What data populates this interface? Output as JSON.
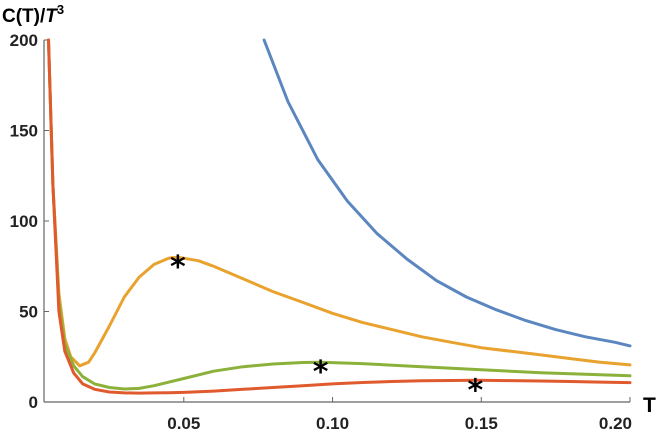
{
  "chart_data": {
    "type": "line",
    "ylabel_main": "C(T)/",
    "ylabel_italic": "T",
    "ylabel_sup": "3",
    "xlabel": "T",
    "xlim": [
      0.003,
      0.2
    ],
    "ylim": [
      0,
      200
    ],
    "x_ticks": [
      0.05,
      0.1,
      0.15,
      0.2
    ],
    "x_tick_labels": [
      "0.05",
      "0.10",
      "0.15",
      "0.20"
    ],
    "y_ticks": [
      0,
      50,
      100,
      150,
      200
    ],
    "y_tick_labels": [
      "0",
      "50",
      "100",
      "150",
      "200"
    ],
    "series": [
      {
        "color": "#5B86BF",
        "x": [
          0.077,
          0.085,
          0.095,
          0.105,
          0.115,
          0.125,
          0.135,
          0.145,
          0.155,
          0.165,
          0.175,
          0.185,
          0.195,
          0.2
        ],
        "y": [
          200,
          166,
          134,
          111,
          93,
          79,
          67,
          58,
          51,
          45,
          40,
          36,
          33,
          31
        ]
      },
      {
        "color": "#E8A22D",
        "x": [
          0.0045,
          0.006,
          0.008,
          0.01,
          0.012,
          0.015,
          0.018,
          0.02,
          0.025,
          0.03,
          0.035,
          0.04,
          0.045,
          0.048,
          0.055,
          0.06,
          0.07,
          0.08,
          0.09,
          0.1,
          0.11,
          0.12,
          0.13,
          0.14,
          0.15,
          0.16,
          0.17,
          0.18,
          0.19,
          0.2
        ],
        "y": [
          200,
          120,
          60,
          35,
          25,
          20,
          22,
          27,
          42,
          58,
          69,
          76,
          79.5,
          80,
          78,
          75,
          68,
          61,
          55,
          49,
          44,
          40,
          36,
          33,
          30,
          28,
          26,
          24,
          22,
          20.5
        ]
      },
      {
        "color": "#8BB13A",
        "x": [
          0.0045,
          0.006,
          0.008,
          0.01,
          0.013,
          0.016,
          0.02,
          0.025,
          0.03,
          0.035,
          0.04,
          0.05,
          0.06,
          0.07,
          0.08,
          0.09,
          0.096,
          0.11,
          0.13,
          0.15,
          0.17,
          0.2
        ],
        "y": [
          200,
          120,
          55,
          32,
          20,
          14,
          10,
          8,
          7.2,
          7.5,
          9,
          13,
          17,
          19.5,
          21,
          21.8,
          22,
          21.2,
          19.5,
          17.8,
          16.2,
          14.5
        ]
      },
      {
        "color": "#E05A2E",
        "x": [
          0.0045,
          0.006,
          0.008,
          0.01,
          0.013,
          0.016,
          0.02,
          0.025,
          0.03,
          0.035,
          0.04,
          0.045,
          0.05,
          0.06,
          0.07,
          0.08,
          0.09,
          0.1,
          0.11,
          0.12,
          0.13,
          0.14,
          0.148,
          0.16,
          0.17,
          0.18,
          0.19,
          0.2
        ],
        "y": [
          200,
          120,
          50,
          28,
          16,
          10,
          7,
          5.5,
          5,
          4.9,
          5,
          5.1,
          5.3,
          6,
          7,
          8,
          9,
          10,
          10.8,
          11.3,
          11.7,
          11.9,
          12,
          11.8,
          11.6,
          11.3,
          11,
          10.7
        ]
      }
    ],
    "markers": [
      {
        "symbol": "*",
        "x": 0.048,
        "y": 80
      },
      {
        "symbol": "*",
        "x": 0.096,
        "y": 22
      },
      {
        "symbol": "*",
        "x": 0.148,
        "y": 12
      }
    ]
  }
}
